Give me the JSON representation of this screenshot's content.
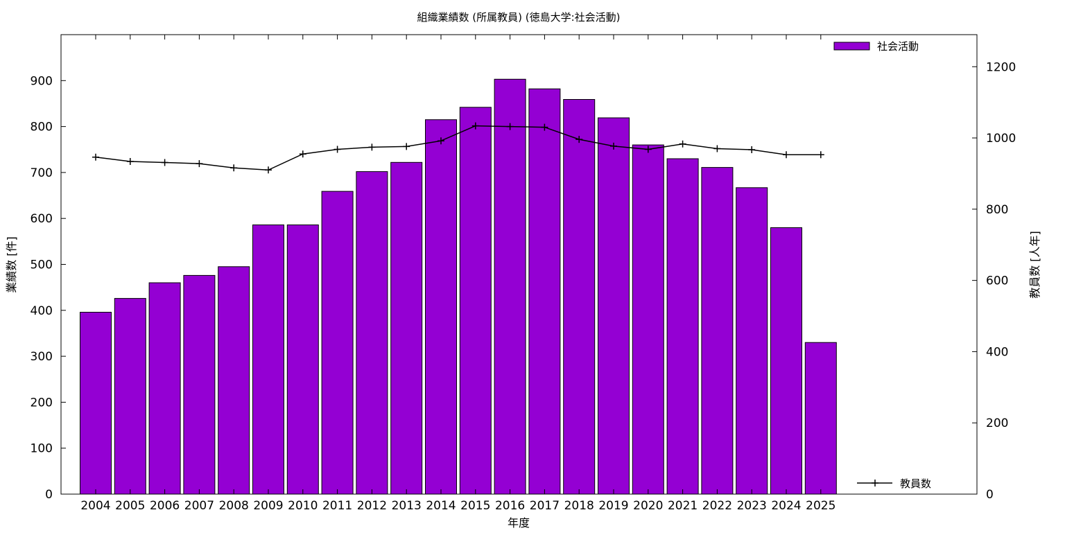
{
  "chart_data": {
    "type": "bar",
    "title": "組織業績数 (所属教員) (徳島大学:社会活動)",
    "xlabel": "年度",
    "ylabel": "業績数 [件]",
    "y2label": "教員数 [人年]",
    "categories": [
      "2004",
      "2005",
      "2006",
      "2007",
      "2008",
      "2009",
      "2010",
      "2011",
      "2012",
      "2013",
      "2014",
      "2015",
      "2016",
      "2017",
      "2018",
      "2019",
      "2020",
      "2021",
      "2022",
      "2023",
      "2024",
      "2025"
    ],
    "ylim": [
      0,
      1000
    ],
    "y2lim": [
      0,
      1290
    ],
    "yticks": [
      0,
      100,
      200,
      300,
      400,
      500,
      600,
      700,
      800,
      900
    ],
    "y2ticks": [
      0,
      200,
      400,
      600,
      800,
      1000,
      1200
    ],
    "grid": false,
    "legend_position": "top-right (bars), bottom-right (line)",
    "series": [
      {
        "name": "社会活動",
        "type": "bar",
        "axis": "left",
        "color": "#9400d3",
        "values": [
          396,
          426,
          460,
          476,
          495,
          586,
          586,
          659,
          702,
          722,
          815,
          842,
          903,
          882,
          859,
          819,
          760,
          730,
          711,
          667,
          580,
          330
        ]
      },
      {
        "name": "教員数",
        "type": "line",
        "axis": "right",
        "color": "#000000",
        "marker": "plus",
        "values": [
          946,
          934,
          931,
          928,
          916,
          910,
          955,
          968,
          974,
          976,
          992,
          1034,
          1032,
          1030,
          996,
          977,
          968,
          983,
          970,
          967,
          953,
          953
        ]
      }
    ]
  }
}
